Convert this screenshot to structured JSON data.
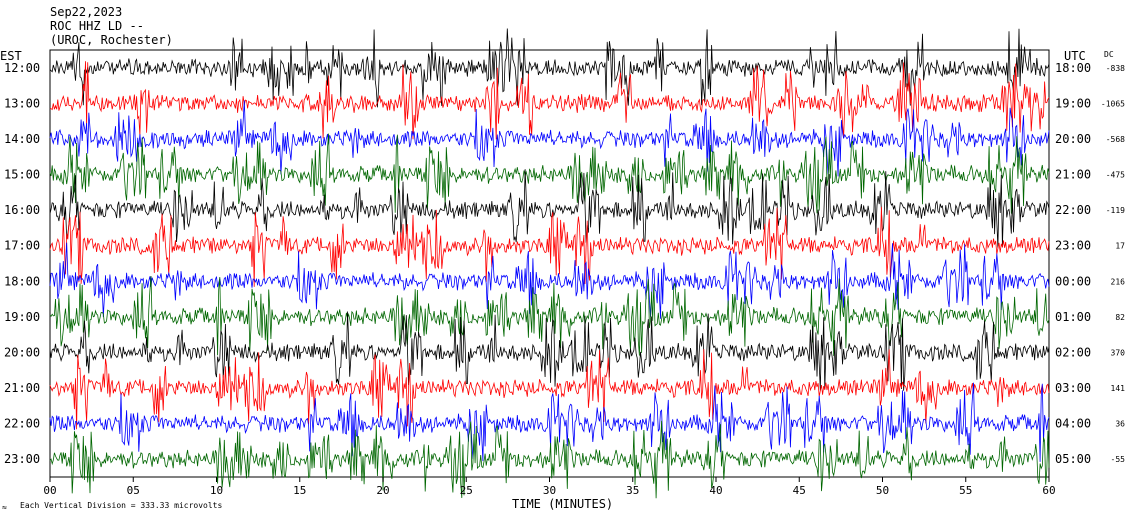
{
  "header": {
    "date": "Sep22,2023",
    "channel": "ROC HHZ LD --",
    "station": "(UROC, Rochester)"
  },
  "left_axis_label": "EST",
  "right_axis_label": "UTC",
  "dc_label": "DC",
  "footer": {
    "scale_text": "Each Vertical Division = 333.33 microvolts"
  },
  "chart_data": {
    "type": "line",
    "title": "",
    "xlabel": "TIME (MINUTES)",
    "ylabel": "",
    "xlim": [
      0,
      60
    ],
    "x_ticks": [
      "00",
      "05",
      "10",
      "15",
      "20",
      "25",
      "30",
      "35",
      "40",
      "45",
      "50",
      "55",
      "60"
    ],
    "x_tick_values": [
      0,
      5,
      10,
      15,
      20,
      25,
      30,
      35,
      40,
      45,
      50,
      55,
      60
    ],
    "trace_colors": [
      "#000000",
      "#ff0000",
      "#0000ff",
      "#006600"
    ],
    "rows": [
      {
        "est": "12:00",
        "utc": "18:00",
        "dc": "-838",
        "color": "#000000"
      },
      {
        "est": "13:00",
        "utc": "19:00",
        "dc": "-1065",
        "color": "#ff0000"
      },
      {
        "est": "14:00",
        "utc": "20:00",
        "dc": "-568",
        "color": "#0000ff"
      },
      {
        "est": "15:00",
        "utc": "21:00",
        "dc": "-475",
        "color": "#006600"
      },
      {
        "est": "16:00",
        "utc": "22:00",
        "dc": "-119",
        "color": "#000000"
      },
      {
        "est": "17:00",
        "utc": "23:00",
        "dc": "17",
        "color": "#ff0000"
      },
      {
        "est": "18:00",
        "utc": "00:00",
        "dc": "216",
        "color": "#0000ff"
      },
      {
        "est": "19:00",
        "utc": "01:00",
        "dc": "82",
        "color": "#006600"
      },
      {
        "est": "20:00",
        "utc": "02:00",
        "dc": "370",
        "color": "#000000"
      },
      {
        "est": "21:00",
        "utc": "03:00",
        "dc": "141",
        "color": "#ff0000"
      },
      {
        "est": "22:00",
        "utc": "04:00",
        "dc": "36",
        "color": "#0000ff"
      },
      {
        "est": "23:00",
        "utc": "05:00",
        "dc": "-55",
        "color": "#006600"
      }
    ],
    "grid": false,
    "legend": "none"
  }
}
